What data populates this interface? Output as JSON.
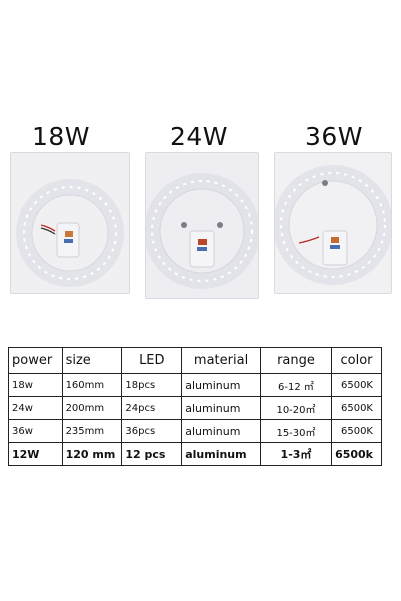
{
  "products": [
    {
      "label": "18W"
    },
    {
      "label": "24W"
    },
    {
      "label": "36W"
    }
  ],
  "table": {
    "headers": [
      "power",
      "size",
      "LED",
      "material",
      "range",
      "color"
    ],
    "rows": [
      [
        "18w",
        "160mm",
        "18pcs",
        "aluminum",
        "6-12 ㎡",
        "6500K"
      ],
      [
        "24w",
        "200mm",
        "24pcs",
        "aluminum",
        "10-20㎡",
        "6500K"
      ],
      [
        "36w",
        "235mm",
        "36pcs",
        "aluminum",
        "15-30㎡",
        "6500K"
      ],
      [
        "12W",
        "120 mm",
        "12 pcs",
        "aluminum",
        "1-3㎡",
        "6500k"
      ]
    ]
  }
}
